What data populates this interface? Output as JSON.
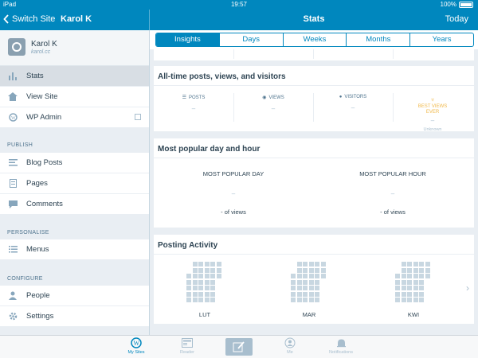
{
  "status_bar": {
    "carrier": "iPad",
    "time": "19:57",
    "battery": "100%"
  },
  "header": {
    "back_label": "Switch Site",
    "user_label": "Karol K",
    "title": "Stats",
    "today_label": "Today"
  },
  "sidebar": {
    "profile": {
      "name": "Karol K",
      "url": "karol.cc"
    },
    "top_items": [
      {
        "label": "Stats",
        "icon": "stats-icon",
        "active": true
      },
      {
        "label": "View Site",
        "icon": "home-icon"
      },
      {
        "label": "WP Admin",
        "icon": "wordpress-icon",
        "external": true
      }
    ],
    "publish": {
      "label": "PUBLISH",
      "items": [
        {
          "label": "Blog Posts",
          "icon": "posts-icon"
        },
        {
          "label": "Pages",
          "icon": "pages-icon"
        },
        {
          "label": "Comments",
          "icon": "comments-icon"
        }
      ]
    },
    "personalise": {
      "label": "PERSONALISE",
      "items": [
        {
          "label": "Menus",
          "icon": "menus-icon"
        }
      ]
    },
    "configure": {
      "label": "CONFIGURE",
      "items": [
        {
          "label": "People",
          "icon": "person-icon"
        },
        {
          "label": "Settings",
          "icon": "gear-icon"
        }
      ]
    }
  },
  "tabs": [
    "Insights",
    "Days",
    "Weeks",
    "Months",
    "Years"
  ],
  "active_tab": "Insights",
  "all_time": {
    "title": "All-time posts, views, and visitors",
    "posts": {
      "label": "POSTS",
      "value": "–"
    },
    "views": {
      "label": "VIEWS",
      "value": "–"
    },
    "visitors": {
      "label": "VISITORS",
      "value": "–"
    },
    "best": {
      "label_line1": "BEST VIEWS",
      "label_line2": "EVER",
      "value": "–",
      "sub": "Unknown"
    }
  },
  "most_popular": {
    "title": "Most popular day and hour",
    "day": {
      "label": "MOST POPULAR DAY",
      "value": "–",
      "views": "- of views"
    },
    "hour": {
      "label": "MOST POPULAR HOUR",
      "value": "–",
      "views": "- of views"
    }
  },
  "posting_activity": {
    "title": "Posting Activity",
    "months": [
      "LUT",
      "MAR",
      "KWI"
    ]
  },
  "tabbar": {
    "items": [
      {
        "label": "My Sites",
        "icon": "wordpress-icon",
        "active": true
      },
      {
        "label": "Reader",
        "icon": "reader-icon"
      },
      {
        "label": "Me",
        "icon": "me-icon"
      },
      {
        "label": "Notifications",
        "icon": "bell-icon"
      }
    ]
  },
  "colors": {
    "accent": "#0087be",
    "sidebar_bg": "#e9eef3",
    "best_views": "#f0b849",
    "heatmap_cell": "#c8d7e1"
  }
}
